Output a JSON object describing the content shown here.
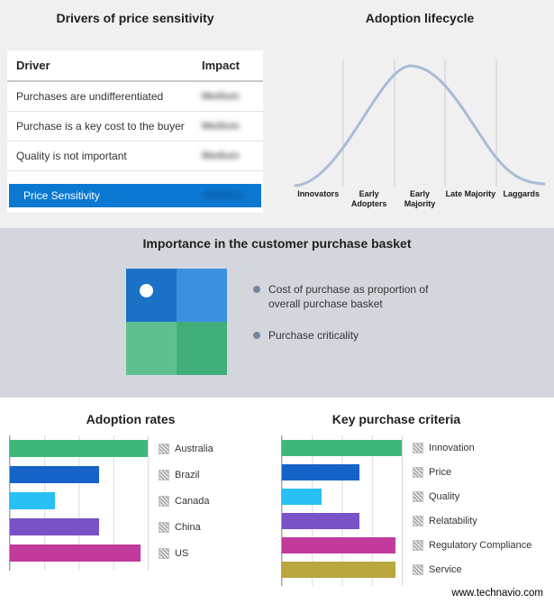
{
  "drivers_table": {
    "title": "Drivers of price sensitivity",
    "columns": {
      "driver": "Driver",
      "impact": "Impact"
    },
    "rows": [
      {
        "driver": "Purchases are undifferentiated",
        "impact": "Medium"
      },
      {
        "driver": "Purchase is a key cost to the buyer",
        "impact": "Medium"
      },
      {
        "driver": "Quality is not important",
        "impact": "Medium"
      }
    ],
    "highlight": {
      "driver": "Price Sensitivity",
      "impact": "Medium",
      "background": "#0b78d2"
    }
  },
  "purchase_basket": {
    "title": "Importance in the customer purchase basket",
    "legend": [
      "Cost of purchase as proportion of overall purchase basket",
      "Purchase criticality"
    ],
    "quadrant_colors": {
      "top_left": "#1a71c6",
      "top_right": "#3c90e0",
      "bottom_left": "#5ec08f",
      "bottom_right": "#3fae7a"
    },
    "band_color": "#d3d7dd"
  },
  "footer": {
    "website": "www.technavio.com"
  },
  "chart_data": [
    {
      "type": "bar",
      "title": "Adoption rates",
      "orientation": "horizontal",
      "categories": [
        "Australia",
        "Brazil",
        "Canada",
        "China",
        "US"
      ],
      "values": [
        100,
        65,
        33,
        65,
        95
      ],
      "colors": [
        "#3eb77b",
        "#1563c6",
        "#29c1f5",
        "#7a52c7",
        "#c23a9c"
      ],
      "xlim": [
        0,
        100
      ],
      "xlabel": "",
      "ylabel": "",
      "grid": true,
      "legend_position": "right"
    },
    {
      "type": "bar",
      "title": "Key purchase criteria",
      "orientation": "horizontal",
      "categories": [
        "Innovation",
        "Price",
        "Quality",
        "Relatability",
        "Regulatory Compliance",
        "Service"
      ],
      "values": [
        100,
        65,
        33,
        65,
        95,
        95
      ],
      "colors": [
        "#3eb77b",
        "#1563c6",
        "#29c1f5",
        "#7a52c7",
        "#c23a9c",
        "#b9a63d"
      ],
      "xlim": [
        0,
        100
      ],
      "xlabel": "",
      "ylabel": "",
      "grid": true,
      "legend_position": "right"
    },
    {
      "type": "line",
      "subtype": "bell-curve",
      "title": "Adoption lifecycle",
      "categories": [
        "Innovators",
        "Early Adopters",
        "Early Majority",
        "Late Majority",
        "Laggards"
      ],
      "curve_color": "#a8bcd6",
      "grid": true
    }
  ]
}
